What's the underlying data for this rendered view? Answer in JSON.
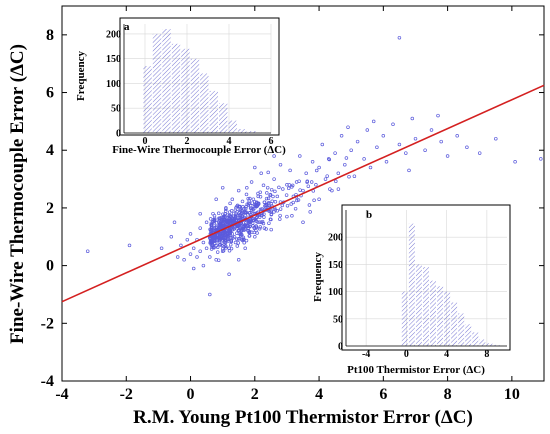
{
  "chart_data": {
    "main": {
      "type": "scatter",
      "xlabel": "R.M. Young Pt100 Thermistor Error (ΔC)",
      "ylabel": "Fine-Wire Thermocouple Error (ΔC)",
      "xlim": [
        -4,
        11
      ],
      "ylim": [
        -4,
        9
      ],
      "xticks": [
        -4,
        -2,
        0,
        2,
        4,
        6,
        8,
        10
      ],
      "yticks": [
        -4,
        -2,
        0,
        2,
        4,
        6,
        8
      ],
      "grid": false,
      "marker_color": "#5b5bdc",
      "fit_line": {
        "color": "#d42020",
        "points": [
          [
            -4,
            -1.25
          ],
          [
            11,
            6.25
          ]
        ]
      },
      "points": [
        [
          -3.2,
          0.5
        ],
        [
          -1.9,
          0.7
        ],
        [
          -0.9,
          0.6
        ],
        [
          -0.6,
          1.0
        ],
        [
          -0.4,
          0.3
        ],
        [
          -0.3,
          0.7
        ],
        [
          -0.2,
          0.2
        ],
        [
          -0.1,
          0.9
        ],
        [
          0.0,
          0.4
        ],
        [
          0.0,
          1.1
        ],
        [
          0.1,
          0.6
        ],
        [
          0.1,
          -0.1
        ],
        [
          0.2,
          0.9
        ],
        [
          0.2,
          0.3
        ],
        [
          0.3,
          1.3
        ],
        [
          0.3,
          0.5
        ],
        [
          0.4,
          0.0
        ],
        [
          0.4,
          0.8
        ],
        [
          0.5,
          1.5
        ],
        [
          0.5,
          0.6
        ],
        [
          0.6,
          0.3
        ],
        [
          0.6,
          1.0
        ],
        [
          0.7,
          1.8
        ],
        [
          0.7,
          0.7
        ],
        [
          0.8,
          1.2
        ],
        [
          0.8,
          0.2
        ],
        [
          0.9,
          0.9
        ],
        [
          0.9,
          1.6
        ],
        [
          1.0,
          0.5
        ],
        [
          1.0,
          1.3
        ],
        [
          1.1,
          2.0
        ],
        [
          1.1,
          0.9
        ],
        [
          1.2,
          1.5
        ],
        [
          1.2,
          0.6
        ],
        [
          1.3,
          1.1
        ],
        [
          1.3,
          2.3
        ],
        [
          1.4,
          0.8
        ],
        [
          1.4,
          1.7
        ],
        [
          1.5,
          1.2
        ],
        [
          1.5,
          2.6
        ],
        [
          1.6,
          0.9
        ],
        [
          1.6,
          1.9
        ],
        [
          1.7,
          1.4
        ],
        [
          1.7,
          0.6
        ],
        [
          1.8,
          2.1
        ],
        [
          1.8,
          1.2
        ],
        [
          1.9,
          1.7
        ],
        [
          1.9,
          2.9
        ],
        [
          2.0,
          1.0
        ],
        [
          2.0,
          2.0
        ],
        [
          2.1,
          1.5
        ],
        [
          2.1,
          2.5
        ],
        [
          2.2,
          1.8
        ],
        [
          2.2,
          3.2
        ],
        [
          2.3,
          1.3
        ],
        [
          2.3,
          2.2
        ],
        [
          2.4,
          2.7
        ],
        [
          2.5,
          1.6
        ],
        [
          2.5,
          2.0
        ],
        [
          2.6,
          3.0
        ],
        [
          2.7,
          1.9
        ],
        [
          2.7,
          2.4
        ],
        [
          2.8,
          3.5
        ],
        [
          2.9,
          2.2
        ],
        [
          3.0,
          2.8
        ],
        [
          3.0,
          1.7
        ],
        [
          3.1,
          3.3
        ],
        [
          3.2,
          2.4
        ],
        [
          3.3,
          2.9
        ],
        [
          3.4,
          3.8
        ],
        [
          3.5,
          2.6
        ],
        [
          3.6,
          3.2
        ],
        [
          3.7,
          2.1
        ],
        [
          3.8,
          3.6
        ],
        [
          3.9,
          2.8
        ],
        [
          4.0,
          3.4
        ],
        [
          4.1,
          4.2
        ],
        [
          4.2,
          3.0
        ],
        [
          4.3,
          3.7
        ],
        [
          4.4,
          2.6
        ],
        [
          4.5,
          3.9
        ],
        [
          4.6,
          3.2
        ],
        [
          4.7,
          4.5
        ],
        [
          4.8,
          3.5
        ],
        [
          5.0,
          4.0
        ],
        [
          5.1,
          3.1
        ],
        [
          5.2,
          4.3
        ],
        [
          5.4,
          3.7
        ],
        [
          5.5,
          4.7
        ],
        [
          5.6,
          3.4
        ],
        [
          5.8,
          4.1
        ],
        [
          6.0,
          4.5
        ],
        [
          6.1,
          3.6
        ],
        [
          6.3,
          4.9
        ],
        [
          6.5,
          4.2
        ],
        [
          6.7,
          3.9
        ],
        [
          6.9,
          5.1
        ],
        [
          7.0,
          4.4
        ],
        [
          7.3,
          4.0
        ],
        [
          7.5,
          4.7
        ],
        [
          7.8,
          4.3
        ],
        [
          8.0,
          3.8
        ],
        [
          8.3,
          4.5
        ],
        [
          8.6,
          4.1
        ],
        [
          9.0,
          3.9
        ],
        [
          9.5,
          4.4
        ],
        [
          10.1,
          3.6
        ],
        [
          10.9,
          3.7
        ],
        [
          6.5,
          7.9
        ],
        [
          0.6,
          -1.0
        ],
        [
          1.0,
          2.7
        ],
        [
          1.5,
          0.2
        ],
        [
          2.0,
          3.4
        ],
        [
          -0.5,
          1.5
        ],
        [
          0.3,
          1.8
        ],
        [
          3.5,
          1.5
        ],
        [
          2.6,
          3.8
        ],
        [
          4.0,
          2.3
        ],
        [
          5.7,
          5.0
        ],
        [
          6.8,
          3.3
        ],
        [
          7.7,
          5.2
        ],
        [
          4.9,
          4.8
        ],
        [
          1.2,
          -0.3
        ],
        [
          0.8,
          2.3
        ]
      ],
      "density_centre": [
        1.5,
        1.3
      ]
    },
    "inset_a": {
      "type": "bar",
      "panel_label": "a",
      "xlabel": "Fine-Wire Thermocouple Error (ΔC)",
      "ylabel": "Frequency",
      "xlim": [
        -1,
        6
      ],
      "ylim": [
        0,
        220
      ],
      "xticks": [
        0,
        2,
        4,
        6
      ],
      "yticks": [
        0,
        50,
        100,
        150,
        200
      ],
      "bin_width": 0.45,
      "bin_starts": [
        -0.1,
        0.35,
        0.8,
        1.25,
        1.7,
        2.15,
        2.6,
        3.05,
        3.5,
        3.95,
        4.4,
        4.85
      ],
      "values": [
        135,
        200,
        210,
        180,
        170,
        150,
        120,
        85,
        60,
        25,
        8,
        4
      ]
    },
    "inset_b": {
      "type": "bar",
      "panel_label": "b",
      "xlabel": "Pt100 Thermistor Error (ΔC)",
      "ylabel": "Frequency",
      "xlim": [
        -6,
        10
      ],
      "ylim": [
        0,
        250
      ],
      "xticks": [
        -4,
        0,
        4,
        8
      ],
      "yticks": [
        0,
        50,
        100,
        150,
        200
      ],
      "bin_width": 0.7,
      "bin_starts": [
        -0.5,
        0.2,
        0.9,
        1.6,
        2.3,
        3.0,
        3.7,
        4.4,
        5.1,
        5.8,
        6.5,
        7.2,
        7.9,
        8.6
      ],
      "values": [
        100,
        225,
        150,
        145,
        120,
        110,
        100,
        80,
        60,
        40,
        25,
        12,
        5,
        2
      ]
    }
  }
}
